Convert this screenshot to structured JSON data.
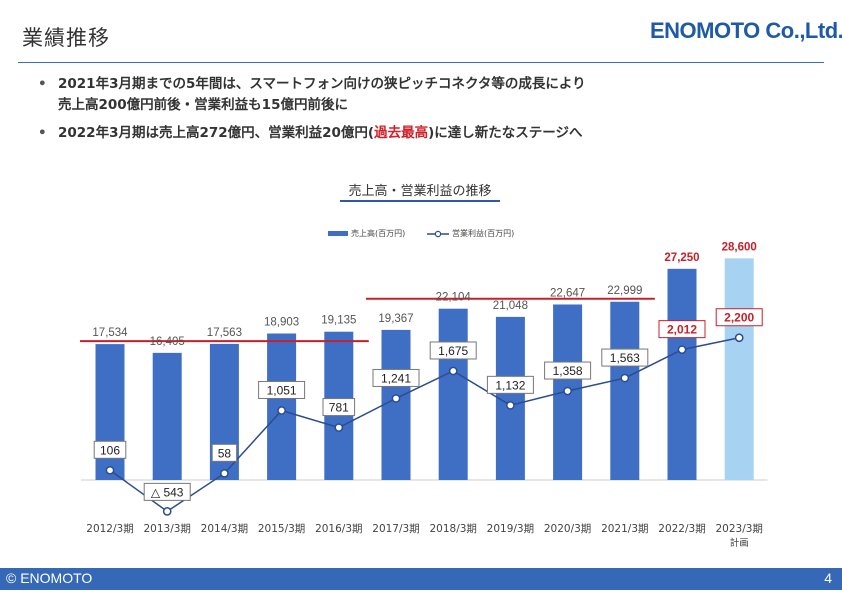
{
  "header": {
    "title": "業績推移",
    "logo_text": "ENOMOTO Co.,Ltd."
  },
  "bullets": [
    {
      "line1": "2021年3月期までの5年間は、スマートフォン向けの狭ピッチコネクタ等の成長により",
      "line2": "売上高200億円前後・営業利益も15億円前後に"
    },
    {
      "before": "2022年3月期は売上高272億円、営業利益20億円(",
      "highlight": "過去最高",
      "after": ")に達し新たなステージへ"
    }
  ],
  "chart_title": "売上高・営業利益の推移",
  "colors": {
    "bar": "#3f6fc4",
    "bar_forecast": "#a8d2f2",
    "line": "#2c4c8f",
    "ref_line": "#c8202a",
    "highlight_text": "#c8202a"
  },
  "chart_data": {
    "type": "bar+line",
    "categories": [
      "2012/3期",
      "2013/3期",
      "2014/3期",
      "2015/3期",
      "2016/3期",
      "2017/3期",
      "2018/3期",
      "2019/3期",
      "2020/3期",
      "2021/3期",
      "2022/3期",
      "2023/3期"
    ],
    "category_sublabels": [
      "",
      "",
      "",
      "",
      "",
      "",
      "",
      "",
      "",
      "",
      "",
      "計画"
    ],
    "series": [
      {
        "name": "売上高(百万円)",
        "type": "bar",
        "values": [
          17534,
          16405,
          17563,
          18903,
          19135,
          19367,
          22104,
          21048,
          22647,
          22999,
          27250,
          28600
        ],
        "labels": [
          "17,534",
          "16,405",
          "17,563",
          "18,903",
          "19,135",
          "19,367",
          "22,104",
          "21,048",
          "22,647",
          "22,999",
          "27,250",
          "28,600"
        ]
      },
      {
        "name": "営業利益(百万円)",
        "type": "line",
        "values": [
          106,
          -543,
          58,
          1051,
          781,
          1241,
          1675,
          1132,
          1358,
          1563,
          2012,
          2200
        ],
        "labels": [
          "106",
          "△ 543",
          "58",
          "1,051",
          "781",
          "1,241",
          "1,675",
          "1,132",
          "1,358",
          "1,563",
          "2,012",
          "2,200"
        ]
      }
    ],
    "forecast_index": 11,
    "highlight_indices": [
      10,
      11
    ],
    "reference_lines": [
      {
        "from_index": 0,
        "to_index": 4,
        "value": 17534
      },
      {
        "from_index": 5,
        "to_index": 9,
        "value": 22999
      }
    ],
    "legend": "top-left"
  },
  "footer": {
    "copyright": "© ENOMOTO",
    "page": "4"
  }
}
